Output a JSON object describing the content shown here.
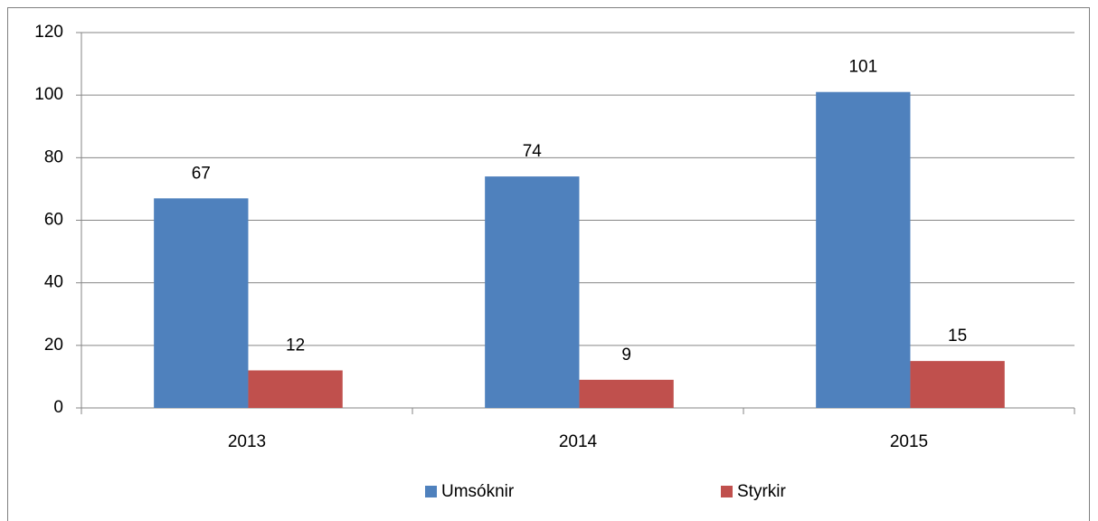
{
  "chart_data": {
    "type": "bar",
    "categories": [
      "2013",
      "2014",
      "2015"
    ],
    "series": [
      {
        "name": "Umsóknir",
        "color": "#4f81bd",
        "values": [
          67,
          74,
          101
        ]
      },
      {
        "name": "Styrkir",
        "color": "#c0504d",
        "values": [
          12,
          9,
          15
        ]
      }
    ],
    "ylim": [
      0,
      120
    ],
    "yticks": [
      0,
      20,
      40,
      60,
      80,
      100,
      120
    ],
    "grid": true,
    "legend": "bottom"
  }
}
